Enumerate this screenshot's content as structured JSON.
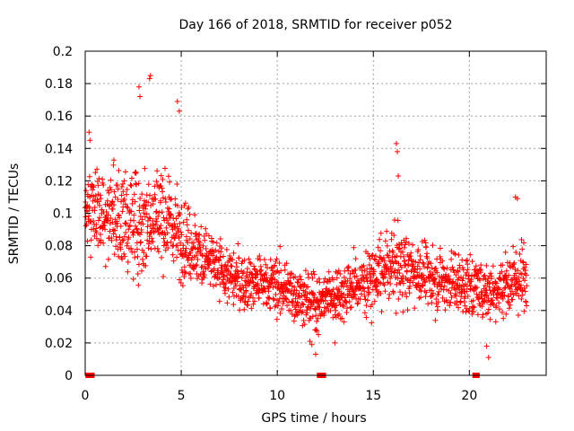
{
  "chart_data": {
    "type": "scatter",
    "title": "Day 166 of 2018, SRMTID for receiver p052",
    "xlabel": "GPS time / hours",
    "ylabel": "SRMTID / TECUs",
    "xlim": [
      0,
      24
    ],
    "ylim": [
      0,
      0.2
    ],
    "xticks": [
      0,
      5,
      10,
      15,
      20
    ],
    "xtick_labels": [
      "0",
      "5",
      "10",
      "15",
      "20"
    ],
    "yticks": [
      0,
      0.02,
      0.04,
      0.06,
      0.08,
      0.1,
      0.12,
      0.14,
      0.16,
      0.18,
      0.2
    ],
    "ytick_labels": [
      "0",
      "0.02",
      "0.04",
      "0.06",
      "0.08",
      "0.1",
      "0.12",
      "0.14",
      "0.16",
      "0.18",
      "0.2"
    ],
    "grid": true,
    "marker": "plus",
    "series_color": "#ff0000",
    "series": [
      {
        "name": "SRMTID",
        "profile_description": "approximate mean level and spread of the point cloud over time (hours, TECU)",
        "mean_profile": {
          "x": [
            0,
            1,
            2,
            3,
            4,
            5,
            6,
            7,
            8,
            9,
            10,
            11,
            12,
            13,
            14,
            15,
            16,
            17,
            18,
            19,
            20,
            21,
            22,
            23
          ],
          "y": [
            0.105,
            0.1,
            0.095,
            0.095,
            0.1,
            0.085,
            0.075,
            0.065,
            0.058,
            0.058,
            0.055,
            0.05,
            0.045,
            0.05,
            0.055,
            0.06,
            0.068,
            0.065,
            0.06,
            0.058,
            0.055,
            0.052,
            0.058,
            0.06
          ],
          "spread": [
            0.02,
            0.022,
            0.025,
            0.028,
            0.025,
            0.02,
            0.018,
            0.016,
            0.014,
            0.014,
            0.014,
            0.014,
            0.013,
            0.014,
            0.015,
            0.016,
            0.018,
            0.017,
            0.016,
            0.015,
            0.015,
            0.015,
            0.016,
            0.016
          ]
        },
        "notable_points": [
          {
            "x": 0.2,
            "y": 0.15
          },
          {
            "x": 0.25,
            "y": 0.145
          },
          {
            "x": 2.8,
            "y": 0.178
          },
          {
            "x": 2.85,
            "y": 0.172
          },
          {
            "x": 3.4,
            "y": 0.185
          },
          {
            "x": 3.35,
            "y": 0.183
          },
          {
            "x": 4.8,
            "y": 0.169
          },
          {
            "x": 4.9,
            "y": 0.163
          },
          {
            "x": 16.2,
            "y": 0.143
          },
          {
            "x": 16.25,
            "y": 0.138
          },
          {
            "x": 16.3,
            "y": 0.123
          },
          {
            "x": 22.4,
            "y": 0.11
          },
          {
            "x": 22.5,
            "y": 0.109
          },
          {
            "x": 11.7,
            "y": 0.021
          },
          {
            "x": 11.8,
            "y": 0.019
          },
          {
            "x": 13.0,
            "y": 0.02
          },
          {
            "x": 20.9,
            "y": 0.018
          },
          {
            "x": 21.0,
            "y": 0.011
          },
          {
            "x": 12.0,
            "y": 0.013
          }
        ],
        "zero_points_x": [
          0.15,
          0.25,
          0.35,
          12.2,
          12.4,
          20.3,
          20.4
        ]
      }
    ]
  }
}
